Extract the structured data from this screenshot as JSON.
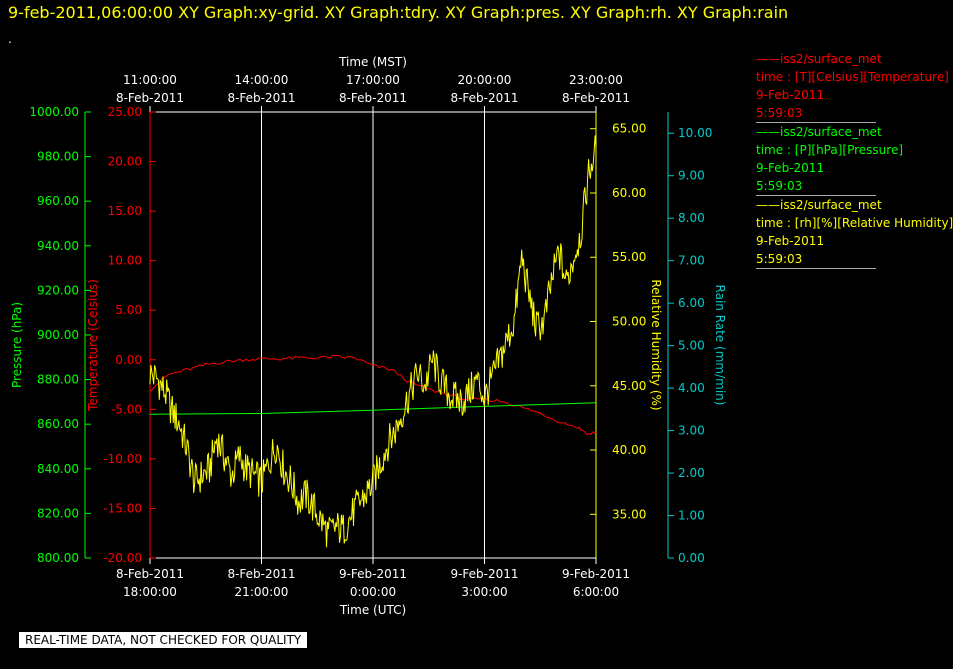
{
  "header": {
    "title": "9-feb-2011,06:00:00  XY Graph:xy-grid.  XY Graph:tdry.  XY Graph:pres.  XY Graph:rh.  XY Graph:rain",
    "dot": "."
  },
  "footer": {
    "label": "REAL-TIME DATA, NOT CHECKED FOR QUALITY"
  },
  "colors": {
    "pressure": "#00ff00",
    "temperature": "#ff0000",
    "humidity": "#ffff00",
    "rain": "#00cccc",
    "axis": "#ffffff",
    "grid": "#ffffff"
  },
  "legend": [
    {
      "line1": "iss2/surface_met",
      "line2": "time : [T][Celsius][Temperature]",
      "line3": "9-Feb-2011",
      "line4": "5:59:03",
      "color": "#ff0000"
    },
    {
      "line1": "iss2/surface_met",
      "line2": "time : [P][hPa][Pressure]",
      "line3": "9-Feb-2011",
      "line4": "5:59:03",
      "color": "#00ff00"
    },
    {
      "line1": "iss2/surface_met",
      "line2": "time : [rh][%][Relative Humidity]",
      "line3": "9-Feb-2011",
      "line4": "5:59:03",
      "color": "#ffff00"
    }
  ],
  "chart_data": {
    "type": "line",
    "top_axis": {
      "title": "Time (MST)",
      "ticks": [
        {
          "line1": "11:00:00",
          "line2": "8-Feb-2011"
        },
        {
          "line1": "14:00:00",
          "line2": "8-Feb-2011"
        },
        {
          "line1": "17:00:00",
          "line2": "8-Feb-2011"
        },
        {
          "line1": "20:00:00",
          "line2": "8-Feb-2011"
        },
        {
          "line1": "23:00:00",
          "line2": "8-Feb-2011"
        }
      ]
    },
    "bottom_axis": {
      "title": "Time (UTC)",
      "ticks": [
        {
          "line1": "8-Feb-2011",
          "line2": "18:00:00"
        },
        {
          "line1": "8-Feb-2011",
          "line2": "21:00:00"
        },
        {
          "line1": "9-Feb-2011",
          "line2": "0:00:00"
        },
        {
          "line1": "9-Feb-2011",
          "line2": "3:00:00"
        },
        {
          "line1": "9-Feb-2011",
          "line2": "6:00:00"
        }
      ]
    },
    "xlim_hours": [
      -6.0,
      6.0
    ],
    "grid": true,
    "pressure_axis": {
      "label": "Pressure (hPa)",
      "ylim": [
        800,
        1000
      ],
      "ticks": [
        "800.00",
        "820.00",
        "840.00",
        "860.00",
        "880.00",
        "900.00",
        "920.00",
        "940.00",
        "960.00",
        "980.00",
        "1000.00"
      ]
    },
    "temperature_axis": {
      "label": "Temperature (Celsius)",
      "ylim": [
        -20,
        25
      ],
      "ticks": [
        "-20.00",
        "-15.00",
        "-10.00",
        "-5.00",
        "0.00",
        "5.00",
        "10.00",
        "15.00",
        "20.00",
        "25.00"
      ]
    },
    "humidity_axis": {
      "label": "Relative Humidity (%)",
      "ylim": [
        31.6,
        66.3
      ],
      "ticks": [
        "35.00",
        "40.00",
        "45.00",
        "50.00",
        "55.00",
        "60.00",
        "65.00"
      ]
    },
    "rain_axis": {
      "label": "Rain Rate (mm/min)",
      "ylim": [
        0,
        10.5
      ],
      "ticks": [
        "0.00",
        "1.00",
        "2.00",
        "3.00",
        "4.00",
        "5.00",
        "6.00",
        "7.00",
        "8.00",
        "9.00",
        "10.00"
      ]
    },
    "series": [
      {
        "name": "[T][Celsius][Temperature]",
        "axis": "temperature",
        "x": [
          -6.0,
          -5.5,
          -5.0,
          -4.5,
          -4.0,
          -3.5,
          -3.0,
          -2.5,
          -2.0,
          -1.5,
          -1.0,
          -0.5,
          0.0,
          0.5,
          1.0,
          1.5,
          2.0,
          2.5,
          3.0,
          3.5,
          4.0,
          4.5,
          5.0,
          5.5,
          5.8,
          6.0
        ],
        "y": [
          -3.0,
          -1.5,
          -1.0,
          -0.5,
          -0.2,
          0.0,
          0.1,
          0.1,
          0.2,
          0.2,
          0.3,
          0.2,
          -0.6,
          -1.0,
          -2.3,
          -3.0,
          -3.5,
          -4.0,
          -4.0,
          -4.2,
          -4.8,
          -5.4,
          -6.2,
          -6.8,
          -7.5,
          -7.3
        ]
      },
      {
        "name": "[P][hPa][Pressure]",
        "axis": "pressure",
        "x": [
          -6.0,
          -3.0,
          0.0,
          3.0,
          6.0
        ],
        "y": [
          864.5,
          864.8,
          866.3,
          868.0,
          869.6
        ]
      },
      {
        "name": "[rh][%][Relative Humidity]",
        "axis": "humidity",
        "x": [
          -6.0,
          -5.8,
          -5.6,
          -5.4,
          -5.2,
          -5.0,
          -4.8,
          -4.6,
          -4.4,
          -4.2,
          -4.0,
          -3.8,
          -3.6,
          -3.4,
          -3.2,
          -3.0,
          -2.8,
          -2.6,
          -2.4,
          -2.2,
          -2.0,
          -1.8,
          -1.6,
          -1.4,
          -1.2,
          -1.0,
          -0.8,
          -0.6,
          -0.4,
          -0.2,
          0.0,
          0.2,
          0.4,
          0.6,
          0.8,
          1.0,
          1.2,
          1.4,
          1.6,
          1.8,
          2.0,
          2.2,
          2.4,
          2.6,
          2.8,
          3.0,
          3.2,
          3.4,
          3.6,
          3.8,
          4.0,
          4.2,
          4.4,
          4.6,
          4.8,
          5.0,
          5.2,
          5.4,
          5.6,
          5.8,
          6.0
        ],
        "y": [
          46.0,
          45.5,
          44.5,
          43.0,
          42.0,
          40.0,
          37.5,
          38.0,
          38.5,
          41.0,
          39.5,
          38.0,
          39.5,
          38.5,
          38.0,
          37.5,
          39.0,
          40.5,
          38.5,
          37.5,
          36.0,
          36.5,
          35.5,
          34.5,
          33.5,
          34.0,
          33.8,
          34.8,
          35.8,
          36.5,
          37.5,
          39.0,
          40.5,
          41.5,
          43.0,
          44.5,
          46.0,
          45.0,
          47.0,
          45.5,
          44.5,
          44.0,
          43.8,
          44.5,
          45.5,
          44.0,
          45.5,
          47.0,
          48.5,
          50.0,
          55.0,
          52.0,
          49.5,
          50.0,
          53.0,
          55.5,
          53.0,
          55.0,
          57.0,
          61.5,
          63.5
        ]
      }
    ]
  }
}
